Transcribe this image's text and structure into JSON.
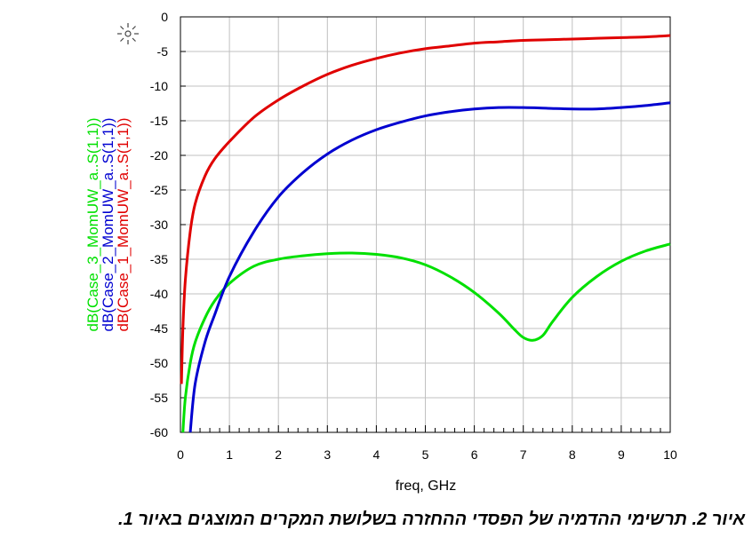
{
  "chart_data": {
    "type": "line",
    "xlabel": "freq, GHz",
    "xlim": [
      0,
      10
    ],
    "ylim": [
      -60,
      0
    ],
    "xticks": [
      0,
      1,
      2,
      3,
      4,
      5,
      6,
      7,
      8,
      9,
      10
    ],
    "yticks": [
      0,
      -5,
      -10,
      -15,
      -20,
      -25,
      -30,
      -35,
      -40,
      -45,
      -50,
      -55,
      -60
    ],
    "grid": true,
    "legend_position": "left vertical (rotated text beside y-axis)",
    "series": [
      {
        "name": "dB(Case_1_MomUW_a..S(1,1))",
        "color": "#e00000",
        "x": [
          0.02,
          0.05,
          0.1,
          0.2,
          0.3,
          0.5,
          0.7,
          1.0,
          1.5,
          2.0,
          2.5,
          3.0,
          3.5,
          4.0,
          4.5,
          5.0,
          5.5,
          6.0,
          6.5,
          7.0,
          7.5,
          8.0,
          8.5,
          9.0,
          9.5,
          10.0
        ],
        "values": [
          -53,
          -45,
          -38,
          -31,
          -27,
          -23,
          -20.5,
          -18,
          -14.5,
          -12,
          -10,
          -8.3,
          -7,
          -6,
          -5.2,
          -4.6,
          -4.2,
          -3.8,
          -3.6,
          -3.4,
          -3.3,
          -3.2,
          -3.1,
          -3.0,
          -2.9,
          -2.7
        ]
      },
      {
        "name": "dB(Case_2_MomUW_a..S(1,1))",
        "color": "#0000d0",
        "x": [
          0.2,
          0.3,
          0.5,
          0.7,
          1.0,
          1.5,
          2.0,
          2.5,
          3.0,
          3.5,
          4.0,
          4.5,
          5.0,
          5.5,
          6.0,
          6.5,
          7.0,
          7.5,
          8.0,
          8.5,
          9.0,
          9.5,
          10.0
        ],
        "values": [
          -60,
          -53,
          -47,
          -43,
          -37.5,
          -31,
          -26,
          -22.5,
          -19.8,
          -17.8,
          -16.3,
          -15.2,
          -14.3,
          -13.7,
          -13.3,
          -13.1,
          -13.1,
          -13.2,
          -13.3,
          -13.3,
          -13.1,
          -12.8,
          -12.4
        ]
      },
      {
        "name": "dB(Case_3_MomUW_a..S(1,1))",
        "color": "#00e000",
        "x": [
          0.05,
          0.1,
          0.2,
          0.3,
          0.5,
          0.7,
          1.0,
          1.5,
          2.0,
          2.5,
          3.0,
          3.5,
          4.0,
          4.5,
          5.0,
          5.5,
          6.0,
          6.5,
          6.8,
          7.0,
          7.2,
          7.4,
          7.6,
          8.0,
          8.5,
          9.0,
          9.5,
          10.0
        ],
        "values": [
          -60,
          -55,
          -50,
          -47,
          -43.5,
          -41,
          -38.5,
          -36,
          -35,
          -34.5,
          -34.2,
          -34.1,
          -34.3,
          -34.8,
          -35.8,
          -37.5,
          -39.8,
          -42.8,
          -45,
          -46.3,
          -46.7,
          -46,
          -44,
          -40.5,
          -37.5,
          -35.3,
          -33.8,
          -32.8
        ]
      }
    ]
  },
  "caption": "איור 2.  תרשימי ההדמיה של הפסדי ההחזרה בשלושת המקרים המוצגים באיור 1."
}
